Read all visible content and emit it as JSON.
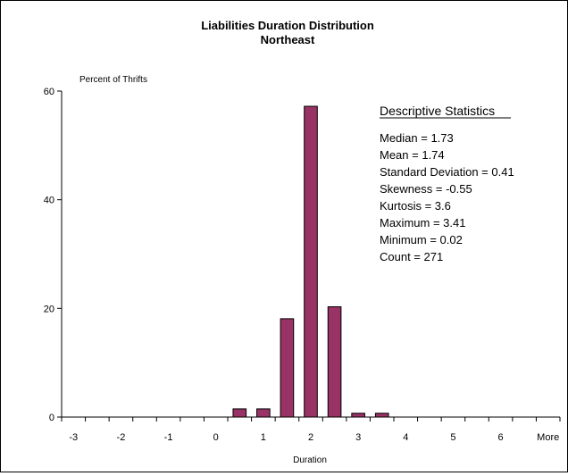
{
  "chart_data": {
    "type": "bar",
    "title": "Liabilities Duration Distribution",
    "subtitle": "Northeast",
    "ylabel": "Percent of Thrifts",
    "xlabel": "Duration",
    "ylim": [
      0,
      60
    ],
    "y_ticks": [
      0,
      20,
      40,
      60
    ],
    "categories": [
      "-3",
      "-2.5",
      "-2",
      "-1.5",
      "-1",
      "-0.5",
      "0",
      "0.5",
      "1",
      "1.5",
      "2",
      "2.5",
      "3",
      "3.5",
      "4",
      "4.5",
      "5",
      "5.5",
      "6",
      "6.5",
      "More"
    ],
    "values": [
      0,
      0,
      0,
      0,
      0,
      0,
      0,
      1.5,
      1.5,
      18.1,
      57.2,
      20.3,
      0.7,
      0.7,
      0,
      0,
      0,
      0,
      0,
      0,
      0
    ],
    "x_tick_labels": [
      "-3",
      "-2",
      "-1",
      "0",
      "1",
      "2",
      "3",
      "4",
      "5",
      "6",
      "More"
    ],
    "bar_color": "#993366",
    "grid": false,
    "legend": "none",
    "stats": {
      "heading": "Descriptive Statistics",
      "lines": [
        "Median = 1.73",
        "Mean = 1.74",
        "Standard Deviation = 0.41",
        "Skewness = -0.55",
        "Kurtosis = 3.6",
        "Maximum = 3.41",
        "Minimum = 0.02",
        "Count = 271"
      ]
    }
  }
}
